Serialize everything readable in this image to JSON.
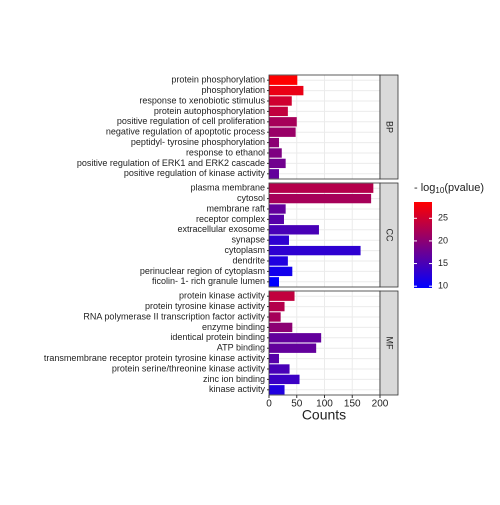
{
  "chart_data": {
    "type": "bar",
    "orientation": "horizontal",
    "xlabel": "Counts",
    "xlim": [
      0,
      200
    ],
    "xticks": [
      0,
      50,
      100,
      150,
      200
    ],
    "grid": true,
    "color_low": "#0000ff",
    "color_high": "#ff0000",
    "clim": [
      9.6,
      28.6
    ],
    "colorbar_title": {
      "prefix": "- log",
      "sub": "10",
      "suffix": "(pvalue)"
    },
    "colorbar_ticks": [
      10,
      15,
      20,
      25
    ],
    "facets": [
      {
        "name": "BP",
        "categories": [
          "protein phosphorylation",
          "phosphorylation",
          "response to xenobiotic stimulus",
          "protein autophosphorylation",
          "positive regulation of cell proliferation",
          "negative regulation of apoptotic process",
          "peptidyl- tyrosine phosphorylation",
          "response to ethanol",
          "positive regulation of ERK1 and ERK2 cascade",
          "positive regulation of kinase activity"
        ],
        "values": [
          51,
          62,
          41,
          34,
          50,
          48,
          18,
          23,
          30,
          18
        ],
        "color_values": [
          28.6,
          27,
          25,
          24,
          22,
          21,
          20,
          19,
          18,
          17
        ]
      },
      {
        "name": "CC",
        "categories": [
          "plasma membrane",
          "cytosol",
          "membrane raft",
          "receptor complex",
          "extracellular exosome",
          "synapse",
          "cytoplasm",
          "dendrite",
          "perinuclear region of cytoplasm",
          "ficolin- 1- rich granule lumen"
        ],
        "values": [
          188,
          184,
          30,
          27,
          90,
          36,
          165,
          34,
          42,
          18
        ],
        "color_values": [
          23,
          22,
          17,
          16,
          15,
          13,
          13,
          12,
          11,
          9.6
        ]
      },
      {
        "name": "MF",
        "categories": [
          "protein kinase activity",
          "protein tyrosine kinase activity",
          "RNA polymerase II transcription factor activity",
          "enzyme binding",
          "identical protein binding",
          "ATP binding",
          "transmembrane receptor protein tyrosine kinase activity",
          "protein serine/threonine kinase activity",
          "zinc ion binding",
          "kinase activity"
        ],
        "values": [
          46,
          28,
          21,
          42,
          94,
          85,
          18,
          37,
          55,
          28
        ],
        "color_values": [
          24,
          23,
          22,
          20,
          17,
          17,
          16,
          15,
          14,
          12
        ]
      }
    ]
  }
}
